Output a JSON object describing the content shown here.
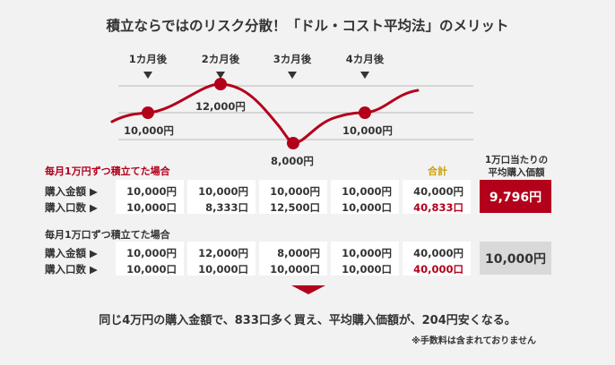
{
  "title": "積立ならではのリスク分散！「ドル・コスト平均法」のメリット",
  "months": [
    "1カ月後",
    "2カ月後",
    "3カ月後",
    "4カ月後"
  ],
  "price_labels": [
    "10,000円",
    "12,000円",
    "8,000円",
    "10,000円"
  ],
  "colors": {
    "accent": "#b3001b",
    "gold": "#c9a100",
    "gray_box": "#d9d9d9"
  },
  "section1": {
    "heading": "毎月1万円ずつ積立てた場合",
    "total_heading": "合計",
    "avg_heading_line1": "1万口当たりの",
    "avg_heading_line2": "平均購入価額",
    "row1_label": "購入金額 ▶",
    "row2_label": "購入口数 ▶",
    "amounts": [
      "10,000円",
      "10,000円",
      "10,000円",
      "10,000円"
    ],
    "amount_total": "40,000円",
    "units": [
      "10,000口",
      "8,333口",
      "12,500口",
      "10,000口"
    ],
    "units_total": "40,833口",
    "avg_price": "9,796円"
  },
  "section2": {
    "heading": "毎月1万口ずつ積立てた場合",
    "row1_label": "購入金額 ▶",
    "row2_label": "購入口数 ▶",
    "amounts": [
      "10,000円",
      "12,000円",
      "8,000円",
      "10,000円"
    ],
    "amount_total": "40,000円",
    "units": [
      "10,000口",
      "10,000口",
      "10,000口",
      "10,000口"
    ],
    "units_total": "40,000口",
    "avg_price": "10,000円"
  },
  "summary": "同じ4万円の購入金額で、833口多く買え、平均購入価額が、204円安くなる。",
  "note": "※手数料は含まれておりません"
}
